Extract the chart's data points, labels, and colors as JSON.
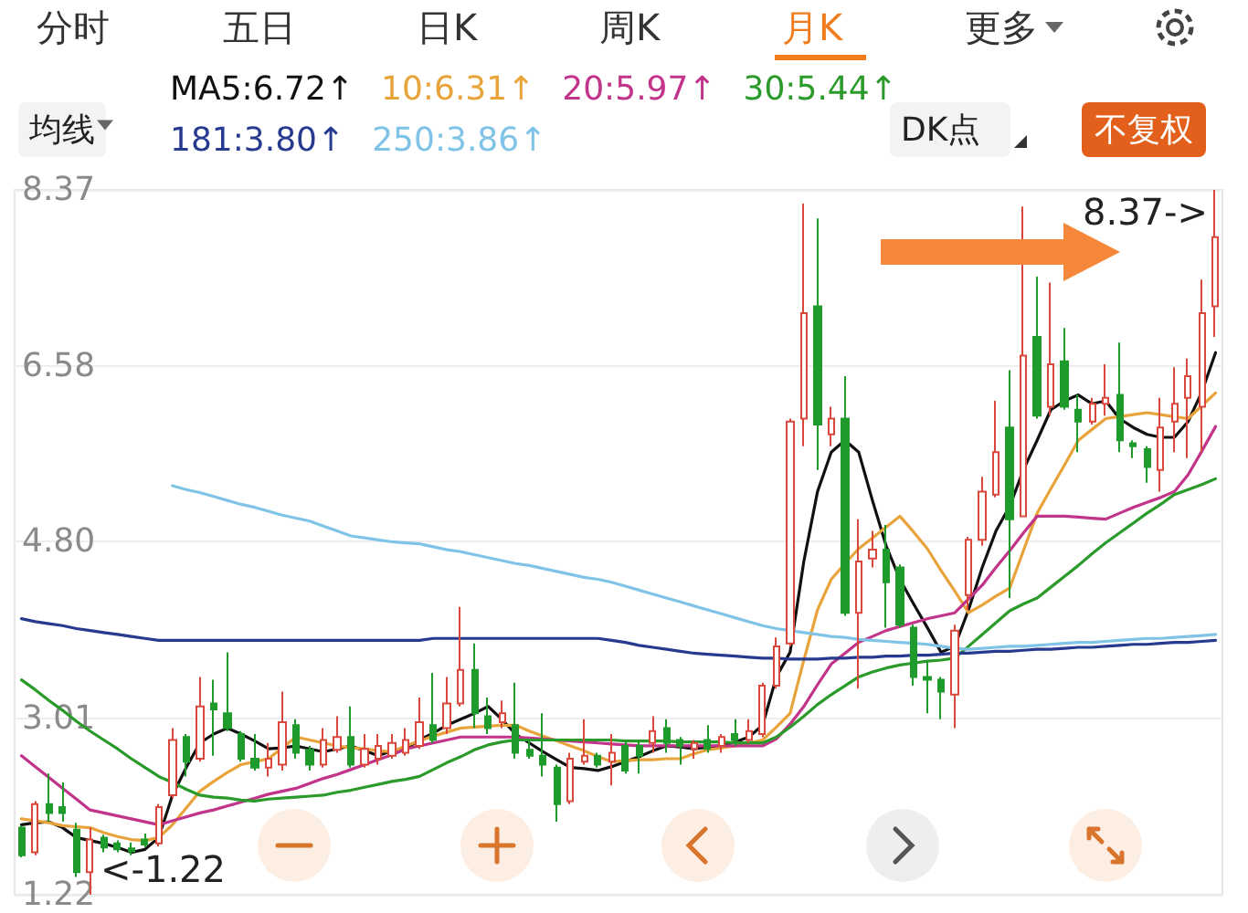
{
  "chart_data": {
    "type": "candlestick",
    "categories": [
      null,
      null,
      null,
      null,
      null,
      null,
      null,
      null,
      null,
      null,
      null,
      null,
      null,
      null,
      null,
      null,
      null,
      null,
      null,
      null,
      null,
      null,
      null,
      null,
      null,
      null,
      null,
      null,
      null,
      null,
      null,
      null,
      null,
      null,
      null,
      null,
      null,
      null,
      null,
      null,
      null,
      null,
      null,
      null,
      null,
      null,
      null,
      null,
      null,
      null,
      null,
      null,
      null,
      null,
      null,
      null,
      null,
      null,
      null,
      null,
      null,
      null,
      null,
      null,
      null,
      null,
      null,
      null,
      null,
      null,
      null,
      null,
      null,
      null,
      null,
      null,
      null,
      null,
      null,
      null,
      null,
      null,
      null,
      null,
      null,
      null,
      null,
      null
    ],
    "ohlc": [
      [
        1.9,
        1.92,
        1.6,
        1.62
      ],
      [
        1.65,
        2.17,
        1.62,
        2.14
      ],
      [
        2.14,
        2.45,
        1.96,
        2.05
      ],
      [
        2.11,
        2.36,
        1.96,
        2.05
      ],
      [
        1.88,
        1.95,
        1.4,
        1.45
      ],
      [
        1.45,
        1.9,
        1.22,
        1.78
      ],
      [
        1.8,
        1.83,
        1.65,
        1.7
      ],
      [
        1.74,
        1.77,
        1.65,
        1.68
      ],
      [
        1.69,
        1.75,
        1.62,
        1.66
      ],
      [
        1.78,
        1.84,
        1.7,
        1.73
      ],
      [
        1.74,
        2.14,
        1.71,
        2.11
      ],
      [
        2.23,
        2.91,
        2.2,
        2.79
      ],
      [
        2.82,
        2.85,
        2.42,
        2.57
      ],
      [
        2.6,
        3.43,
        2.57,
        3.13
      ],
      [
        3.16,
        3.4,
        2.63,
        3.1
      ],
      [
        3.06,
        3.68,
        2.88,
        2.91
      ],
      [
        2.85,
        2.88,
        2.57,
        2.6
      ],
      [
        2.6,
        2.85,
        2.48,
        2.51
      ],
      [
        2.51,
        2.76,
        2.42,
        2.6
      ],
      [
        2.54,
        3.28,
        2.48,
        2.97
      ],
      [
        2.94,
        3.0,
        2.6,
        2.66
      ],
      [
        2.69,
        2.73,
        2.48,
        2.54
      ],
      [
        2.54,
        2.91,
        2.51,
        2.79
      ],
      [
        2.69,
        3.03,
        2.66,
        2.82
      ],
      [
        2.82,
        3.13,
        2.51,
        2.54
      ],
      [
        2.54,
        2.85,
        2.51,
        2.7
      ],
      [
        2.6,
        2.85,
        2.54,
        2.73
      ],
      [
        2.63,
        2.85,
        2.6,
        2.76
      ],
      [
        2.66,
        2.91,
        2.63,
        2.79
      ],
      [
        2.73,
        3.22,
        2.7,
        2.97
      ],
      [
        2.94,
        3.47,
        2.76,
        2.79
      ],
      [
        2.91,
        3.43,
        2.85,
        3.16
      ],
      [
        3.16,
        4.14,
        3.13,
        3.5
      ],
      [
        3.5,
        3.77,
        2.91,
        3.06
      ],
      [
        3.03,
        3.22,
        2.85,
        2.91
      ],
      [
        2.97,
        3.19,
        2.91,
        3.06
      ],
      [
        2.94,
        3.37,
        2.6,
        2.66
      ],
      [
        2.69,
        2.79,
        2.6,
        2.63
      ],
      [
        2.63,
        3.06,
        2.42,
        2.54
      ],
      [
        2.51,
        2.54,
        1.96,
        2.14
      ],
      [
        2.17,
        2.66,
        2.14,
        2.6
      ],
      [
        2.57,
        3.0,
        2.54,
        2.63
      ],
      [
        2.63,
        2.66,
        2.51,
        2.54
      ],
      [
        2.57,
        2.85,
        2.33,
        2.66
      ],
      [
        2.73,
        2.79,
        2.45,
        2.48
      ],
      [
        2.73,
        2.79,
        2.45,
        2.63
      ],
      [
        2.76,
        3.03,
        2.66,
        2.88
      ],
      [
        2.91,
        3.0,
        2.66,
        2.76
      ],
      [
        2.79,
        2.82,
        2.54,
        2.73
      ],
      [
        2.7,
        2.79,
        2.6,
        2.76
      ],
      [
        2.79,
        2.94,
        2.66,
        2.7
      ],
      [
        2.73,
        2.85,
        2.66,
        2.82
      ],
      [
        2.85,
        3.0,
        2.73,
        2.79
      ],
      [
        2.79,
        3.0,
        2.76,
        2.88
      ],
      [
        2.85,
        3.37,
        2.82,
        3.34
      ],
      [
        3.34,
        3.83,
        3.31,
        3.74
      ],
      [
        3.77,
        6.05,
        3.74,
        6.02
      ],
      [
        6.05,
        8.23,
        5.77,
        7.12
      ],
      [
        7.19,
        8.08,
        5.53,
        5.99
      ],
      [
        5.89,
        6.17,
        5.77,
        6.05
      ],
      [
        6.05,
        6.48,
        4.05,
        4.08
      ],
      [
        4.08,
        5.03,
        3.31,
        4.6
      ],
      [
        4.63,
        4.91,
        4.54,
        4.72
      ],
      [
        4.72,
        4.97,
        3.93,
        4.39
      ],
      [
        4.54,
        4.57,
        3.93,
        3.96
      ],
      [
        3.93,
        3.96,
        3.34,
        3.43
      ],
      [
        3.43,
        3.59,
        3.06,
        3.4
      ],
      [
        3.4,
        3.43,
        3.0,
        3.28
      ],
      [
        3.25,
        3.96,
        2.91,
        3.9
      ],
      [
        4.26,
        4.85,
        4.11,
        4.82
      ],
      [
        4.82,
        5.46,
        4.76,
        5.31
      ],
      [
        5.28,
        6.23,
        5.25,
        5.71
      ],
      [
        5.96,
        6.54,
        4.23,
        5.03
      ],
      [
        5.06,
        8.2,
        5.06,
        6.69
      ],
      [
        6.88,
        7.49,
        6.05,
        6.08
      ],
      [
        6.17,
        7.43,
        6.08,
        6.6
      ],
      [
        6.63,
        6.97,
        6.14,
        6.17
      ],
      [
        6.14,
        6.29,
        5.71,
        6.02
      ],
      [
        6.02,
        6.26,
        5.99,
        6.2
      ],
      [
        6.2,
        6.6,
        6.08,
        6.26
      ],
      [
        6.29,
        6.82,
        5.71,
        5.83
      ],
      [
        5.8,
        5.83,
        5.65,
        5.77
      ],
      [
        5.74,
        5.77,
        5.4,
        5.56
      ],
      [
        5.53,
        6.26,
        5.31,
        5.96
      ],
      [
        6.02,
        6.57,
        5.71,
        6.2
      ],
      [
        6.26,
        6.66,
        5.65,
        6.48
      ],
      [
        6.17,
        7.46,
        5.71,
        7.12
      ],
      [
        7.19,
        8.37,
        6.88,
        7.89
      ]
    ],
    "colors": [
      "#1e9b2c",
      "#d9483b",
      "#1e9b2c",
      "#1e9b2c",
      "#1e9b2c",
      "#d9483b",
      "#1e9b2c",
      "#1e9b2c",
      "#1e9b2c",
      "#1e9b2c",
      "#d9483b",
      "#d9483b",
      "#1e9b2c",
      "#d9483b",
      "#1e9b2c",
      "#1e9b2c",
      "#1e9b2c",
      "#1e9b2c",
      "#d9483b",
      "#d9483b",
      "#1e9b2c",
      "#1e9b2c",
      "#d9483b",
      "#d9483b",
      "#1e9b2c",
      "#d9483b",
      "#d9483b",
      "#d9483b",
      "#d9483b",
      "#d9483b",
      "#1e9b2c",
      "#d9483b",
      "#d9483b",
      "#1e9b2c",
      "#1e9b2c",
      "#d9483b",
      "#1e9b2c",
      "#1e9b2c",
      "#1e9b2c",
      "#1e9b2c",
      "#d9483b",
      "#d9483b",
      "#1e9b2c",
      "#d9483b",
      "#1e9b2c",
      "#1e9b2c",
      "#d9483b",
      "#1e9b2c",
      "#1e9b2c",
      "#d9483b",
      "#1e9b2c",
      "#d9483b",
      "#1e9b2c",
      "#d9483b",
      "#d9483b",
      "#d9483b",
      "#d9483b",
      "#d9483b",
      "#1e9b2c",
      "#d9483b",
      "#1e9b2c",
      "#d9483b",
      "#d9483b",
      "#1e9b2c",
      "#1e9b2c",
      "#1e9b2c",
      "#1e9b2c",
      "#1e9b2c",
      "#d9483b",
      "#d9483b",
      "#d9483b",
      "#d9483b",
      "#1e9b2c",
      "#d9483b",
      "#1e9b2c",
      "#d9483b",
      "#1e9b2c",
      "#1e9b2c",
      "#d9483b",
      "#d9483b",
      "#1e9b2c",
      "#1e9b2c",
      "#1e9b2c",
      "#d9483b",
      "#d9483b",
      "#d9483b",
      "#d9483b",
      "#d9483b"
    ],
    "series": [
      {
        "type": "line",
        "name": "MA5:6.72↑",
        "color": "#111111",
        "values": [
          1.93,
          1.95,
          1.96,
          1.9,
          1.8,
          1.77,
          1.74,
          1.7,
          1.65,
          1.68,
          1.8,
          2.23,
          2.51,
          2.76,
          2.85,
          2.91,
          2.85,
          2.78,
          2.7,
          2.71,
          2.73,
          2.7,
          2.67,
          2.7,
          2.73,
          2.68,
          2.63,
          2.68,
          2.7,
          2.79,
          2.86,
          2.94,
          3.0,
          3.06,
          3.13,
          3.0,
          2.85,
          2.76,
          2.67,
          2.59,
          2.51,
          2.5,
          2.48,
          2.52,
          2.57,
          2.62,
          2.68,
          2.73,
          2.72,
          2.7,
          2.72,
          2.73,
          2.77,
          2.82,
          2.94,
          3.43,
          3.68,
          4.6,
          5.31,
          5.71,
          5.83,
          5.71,
          5.22,
          4.76,
          4.42,
          4.17,
          3.93,
          3.68,
          3.74,
          4.11,
          4.54,
          4.91,
          5.16,
          5.53,
          5.83,
          6.14,
          6.23,
          6.29,
          6.2,
          6.23,
          6.05,
          5.96,
          5.89,
          5.86,
          5.86,
          6.02,
          6.32,
          6.72
        ]
      },
      {
        "type": "line",
        "name": "10:6.31↑",
        "color": "#e8a33a",
        "values": [
          1.99,
          1.97,
          1.95,
          1.92,
          1.91,
          1.9,
          1.85,
          1.81,
          1.78,
          1.77,
          1.8,
          1.93,
          2.1,
          2.27,
          2.37,
          2.46,
          2.54,
          2.57,
          2.6,
          2.71,
          2.82,
          2.79,
          2.76,
          2.73,
          2.71,
          2.7,
          2.68,
          2.67,
          2.73,
          2.78,
          2.83,
          2.87,
          2.91,
          2.92,
          2.93,
          2.94,
          2.94,
          2.88,
          2.83,
          2.78,
          2.73,
          2.68,
          2.62,
          2.57,
          2.58,
          2.59,
          2.59,
          2.6,
          2.6,
          2.65,
          2.69,
          2.71,
          2.73,
          2.76,
          2.79,
          2.92,
          3.06,
          3.6,
          4.11,
          4.42,
          4.58,
          4.73,
          4.84,
          4.95,
          5.06,
          4.9,
          4.73,
          4.51,
          4.3,
          4.08,
          4.16,
          4.25,
          4.33,
          4.71,
          5.09,
          5.34,
          5.58,
          5.83,
          5.94,
          6.05,
          6.07,
          6.09,
          6.11,
          6.09,
          6.07,
          6.05,
          6.18,
          6.31
        ]
      },
      {
        "type": "line",
        "name": "20:5.97↑",
        "color": "#c2338a",
        "values": [
          2.63,
          2.52,
          2.41,
          2.3,
          2.19,
          2.08,
          2.05,
          2.02,
          1.99,
          1.96,
          1.93,
          1.97,
          2.01,
          2.05,
          2.08,
          2.12,
          2.16,
          2.2,
          2.24,
          2.27,
          2.3,
          2.35,
          2.4,
          2.44,
          2.49,
          2.54,
          2.59,
          2.64,
          2.7,
          2.73,
          2.76,
          2.79,
          2.82,
          2.82,
          2.82,
          2.82,
          2.82,
          2.81,
          2.8,
          2.79,
          2.78,
          2.77,
          2.76,
          2.75,
          2.74,
          2.73,
          2.73,
          2.73,
          2.73,
          2.73,
          2.73,
          2.73,
          2.73,
          2.73,
          2.73,
          2.8,
          2.95,
          3.13,
          3.35,
          3.56,
          3.67,
          3.78,
          3.84,
          3.9,
          3.94,
          3.98,
          4.02,
          4.05,
          4.08,
          4.22,
          4.36,
          4.54,
          4.71,
          4.89,
          5.06,
          5.06,
          5.06,
          5.05,
          5.04,
          5.03,
          5.09,
          5.15,
          5.2,
          5.25,
          5.31,
          5.48,
          5.72,
          5.97
        ]
      },
      {
        "type": "line",
        "name": "30:5.44↑",
        "color": "#2a9a2a",
        "values": [
          3.4,
          3.3,
          3.19,
          3.09,
          2.98,
          2.88,
          2.79,
          2.7,
          2.6,
          2.51,
          2.42,
          2.36,
          2.29,
          2.23,
          2.21,
          2.2,
          2.18,
          2.17,
          2.19,
          2.2,
          2.21,
          2.22,
          2.23,
          2.26,
          2.28,
          2.31,
          2.34,
          2.37,
          2.39,
          2.42,
          2.49,
          2.56,
          2.62,
          2.69,
          2.74,
          2.77,
          2.79,
          2.79,
          2.79,
          2.79,
          2.79,
          2.79,
          2.79,
          2.79,
          2.78,
          2.78,
          2.78,
          2.78,
          2.77,
          2.77,
          2.77,
          2.77,
          2.76,
          2.76,
          2.76,
          2.82,
          2.92,
          3.03,
          3.15,
          3.25,
          3.34,
          3.43,
          3.48,
          3.52,
          3.55,
          3.57,
          3.59,
          3.6,
          3.62,
          3.74,
          3.86,
          3.98,
          4.1,
          4.17,
          4.23,
          4.34,
          4.45,
          4.56,
          4.68,
          4.79,
          4.89,
          4.99,
          5.09,
          5.18,
          5.28,
          5.33,
          5.38,
          5.44
        ]
      },
      {
        "type": "line",
        "name": "181:3.80↑",
        "color": "#263a8f",
        "values": [
          4.02,
          3.99,
          3.97,
          3.95,
          3.92,
          3.9,
          3.88,
          3.86,
          3.84,
          3.82,
          3.8,
          3.8,
          3.8,
          3.8,
          3.8,
          3.8,
          3.8,
          3.8,
          3.8,
          3.8,
          3.8,
          3.8,
          3.8,
          3.8,
          3.8,
          3.8,
          3.8,
          3.8,
          3.8,
          3.8,
          3.82,
          3.82,
          3.82,
          3.82,
          3.82,
          3.82,
          3.82,
          3.82,
          3.82,
          3.82,
          3.82,
          3.82,
          3.82,
          3.8,
          3.78,
          3.75,
          3.73,
          3.71,
          3.69,
          3.67,
          3.66,
          3.65,
          3.64,
          3.63,
          3.62,
          3.62,
          3.61,
          3.61,
          3.61,
          3.62,
          3.62,
          3.63,
          3.63,
          3.64,
          3.64,
          3.65,
          3.65,
          3.66,
          3.67,
          3.67,
          3.68,
          3.69,
          3.69,
          3.7,
          3.71,
          3.71,
          3.72,
          3.73,
          3.73,
          3.74,
          3.75,
          3.76,
          3.76,
          3.77,
          3.78,
          3.78,
          3.79,
          3.8
        ]
      },
      {
        "type": "line",
        "name": "250:3.86↑",
        "color": "#7fc3e6",
        "values": [
          null,
          null,
          null,
          null,
          null,
          null,
          null,
          null,
          null,
          null,
          null,
          5.37,
          5.33,
          5.3,
          5.26,
          5.22,
          5.18,
          5.15,
          5.11,
          5.07,
          5.04,
          5.01,
          4.96,
          4.91,
          4.86,
          4.84,
          4.82,
          4.8,
          4.79,
          4.78,
          4.75,
          4.72,
          4.7,
          4.67,
          4.64,
          4.61,
          4.58,
          4.56,
          4.53,
          4.5,
          4.47,
          4.44,
          4.42,
          4.39,
          4.35,
          4.31,
          4.27,
          4.23,
          4.19,
          4.15,
          4.11,
          4.07,
          4.03,
          3.99,
          3.95,
          3.92,
          3.9,
          3.88,
          3.86,
          3.84,
          3.83,
          3.81,
          3.8,
          3.79,
          3.78,
          3.77,
          3.76,
          3.74,
          3.72,
          3.71,
          3.72,
          3.73,
          3.74,
          3.74,
          3.75,
          3.76,
          3.77,
          3.78,
          3.78,
          3.79,
          3.8,
          3.81,
          3.82,
          3.82,
          3.83,
          3.84,
          3.85,
          3.86
        ]
      }
    ],
    "ylim": [
      1.22,
      8.37
    ],
    "yticks": [
      1.22,
      3.01,
      {
        "value": 4.8,
        "label": "4.80"
      },
      6.58,
      8.37
    ],
    "grid": "y",
    "legend": "top left",
    "tick_labels": "y",
    "annotations": [
      "8.37->",
      "<-1.22",
      "分时",
      "五日",
      "日K",
      "周K",
      "月K",
      "更多",
      "均线",
      "DK点",
      "不复权"
    ]
  }
}
